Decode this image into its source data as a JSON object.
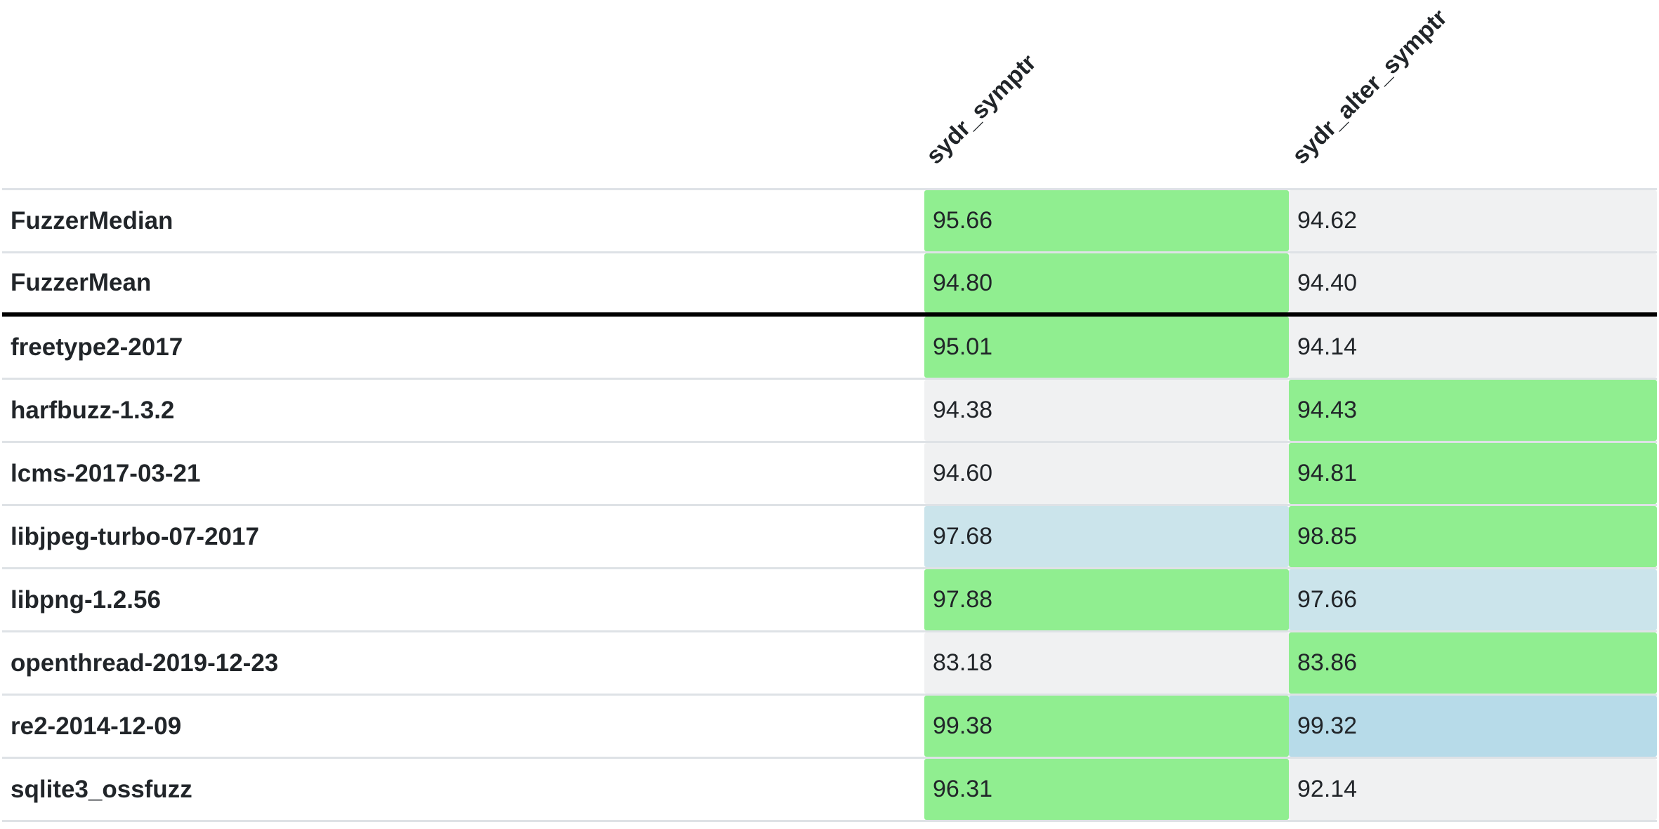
{
  "colors": {
    "best": "#90ee90",
    "neutral": "#f0f1f2",
    "light_blue": "#cbe4eb",
    "mid_blue": "#b7dbe9",
    "divider": "#000000",
    "grid": "#dee2e6"
  },
  "table": {
    "columns": [
      "sydr_symptr",
      "sydr_alter_symptr"
    ],
    "rows": [
      {
        "label": "FuzzerMedian",
        "values": [
          "95.66",
          "94.62"
        ],
        "colors": [
          "#90ee90",
          "#f0f1f2"
        ]
      },
      {
        "label": "FuzzerMean",
        "values": [
          "94.80",
          "94.40"
        ],
        "colors": [
          "#90ee90",
          "#f0f1f2"
        ]
      },
      {
        "label": "freetype2-2017",
        "values": [
          "95.01",
          "94.14"
        ],
        "colors": [
          "#90ee90",
          "#f0f1f2"
        ]
      },
      {
        "label": "harfbuzz-1.3.2",
        "values": [
          "94.38",
          "94.43"
        ],
        "colors": [
          "#f0f1f2",
          "#90ee90"
        ]
      },
      {
        "label": "lcms-2017-03-21",
        "values": [
          "94.60",
          "94.81"
        ],
        "colors": [
          "#f0f1f2",
          "#90ee90"
        ]
      },
      {
        "label": "libjpeg-turbo-07-2017",
        "values": [
          "97.68",
          "98.85"
        ],
        "colors": [
          "#cbe4eb",
          "#90ee90"
        ]
      },
      {
        "label": "libpng-1.2.56",
        "values": [
          "97.88",
          "97.66"
        ],
        "colors": [
          "#90ee90",
          "#cbe4eb"
        ]
      },
      {
        "label": "openthread-2019-12-23",
        "values": [
          "83.18",
          "83.86"
        ],
        "colors": [
          "#f0f1f2",
          "#90ee90"
        ]
      },
      {
        "label": "re2-2014-12-09",
        "values": [
          "99.38",
          "99.32"
        ],
        "colors": [
          "#90ee90",
          "#b7dbe9"
        ]
      },
      {
        "label": "sqlite3_ossfuzz",
        "values": [
          "96.31",
          "92.14"
        ],
        "colors": [
          "#90ee90",
          "#f0f1f2"
        ]
      }
    ]
  }
}
